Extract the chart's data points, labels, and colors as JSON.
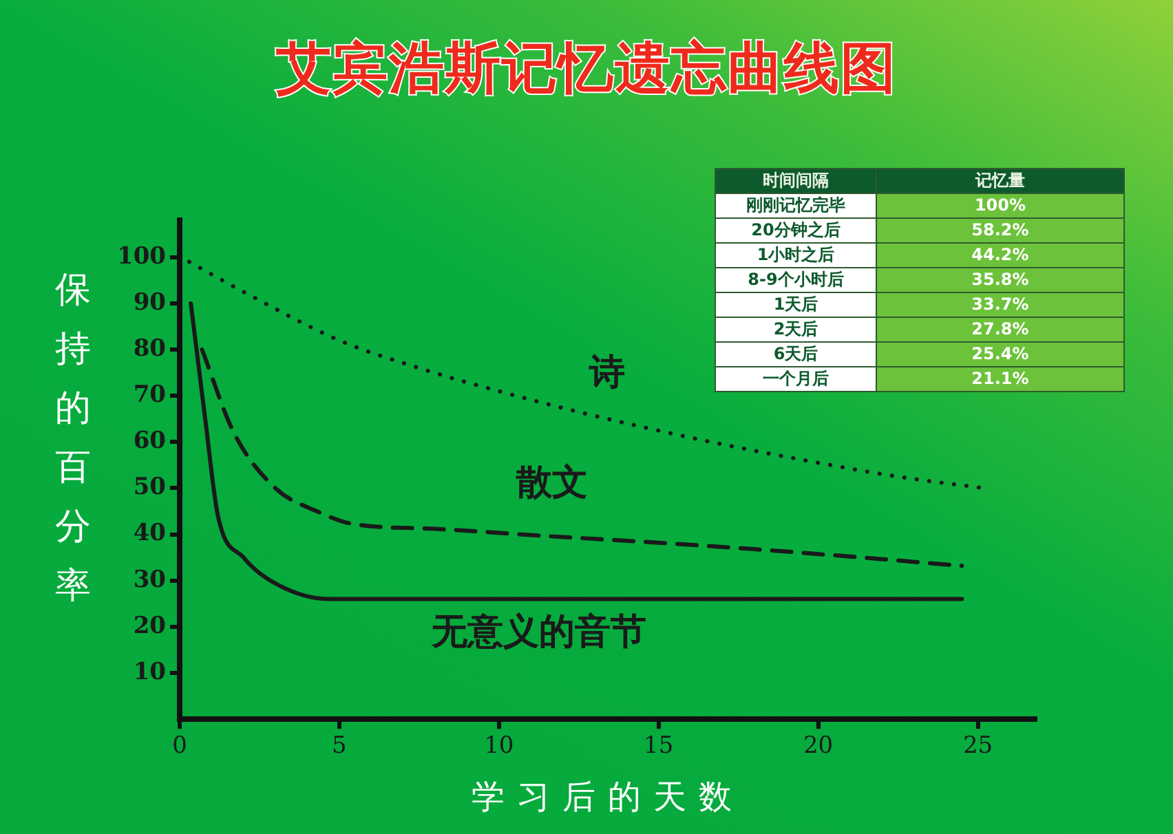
{
  "chart_data": [
    {
      "type": "line",
      "title": "艾宾浩斯记忆遗忘曲线图",
      "xlabel": "学习后的天数",
      "ylabel": "保持的百分率",
      "xlim": [
        0,
        26.8
      ],
      "xticks": [
        0,
        5,
        10,
        15,
        20,
        25
      ],
      "ylim": [
        0,
        108
      ],
      "yticks": [
        10,
        20,
        30,
        40,
        50,
        60,
        70,
        80,
        90,
        100
      ],
      "marker": "none",
      "legend": false,
      "series": [
        {
          "name": "诗",
          "color": "#1a1a1a",
          "line_style": "dotted",
          "x": [
            0.3,
            2,
            5,
            7.5,
            10,
            12.5,
            14.4,
            17,
            20,
            22.5,
            25.2
          ],
          "values": [
            99,
            92.5,
            82,
            76,
            71,
            66.5,
            63.4,
            59.5,
            55.5,
            52.5,
            50
          ]
        },
        {
          "name": "散文",
          "color": "#1a1a1a",
          "line_style": "dashed",
          "x": [
            0.7,
            1.7,
            3,
            4.3,
            5.4,
            8,
            11.6,
            15,
            18,
            21,
            24.5
          ],
          "values": [
            80,
            62,
            50,
            45,
            42.3,
            41.2,
            39.6,
            38.2,
            36.8,
            35.2,
            33.2
          ]
        },
        {
          "name": "无意义的音节",
          "color": "#1a1a1a",
          "line_style": "solid",
          "x": [
            0.35,
            0.8,
            1.2,
            2,
            3.1,
            4.7,
            8,
            12,
            16,
            20,
            24.5
          ],
          "values": [
            90,
            65,
            44,
            35,
            29,
            26,
            26,
            26,
            26,
            26,
            26
          ]
        }
      ]
    },
    {
      "type": "other",
      "xlabel": "时间间隔",
      "ylabel": "记忆量",
      "categories": [
        "刚刚记忆完毕",
        "20分钟之后",
        "1小时之后",
        "8-9个小时后",
        "1天后",
        "2天后",
        "6天后",
        "一个月后"
      ],
      "value_labels": [
        "100%",
        "58.2%",
        "44.2%",
        "35.8%",
        "33.7%",
        "27.8%",
        "25.4%",
        "21.1%"
      ]
    }
  ]
}
